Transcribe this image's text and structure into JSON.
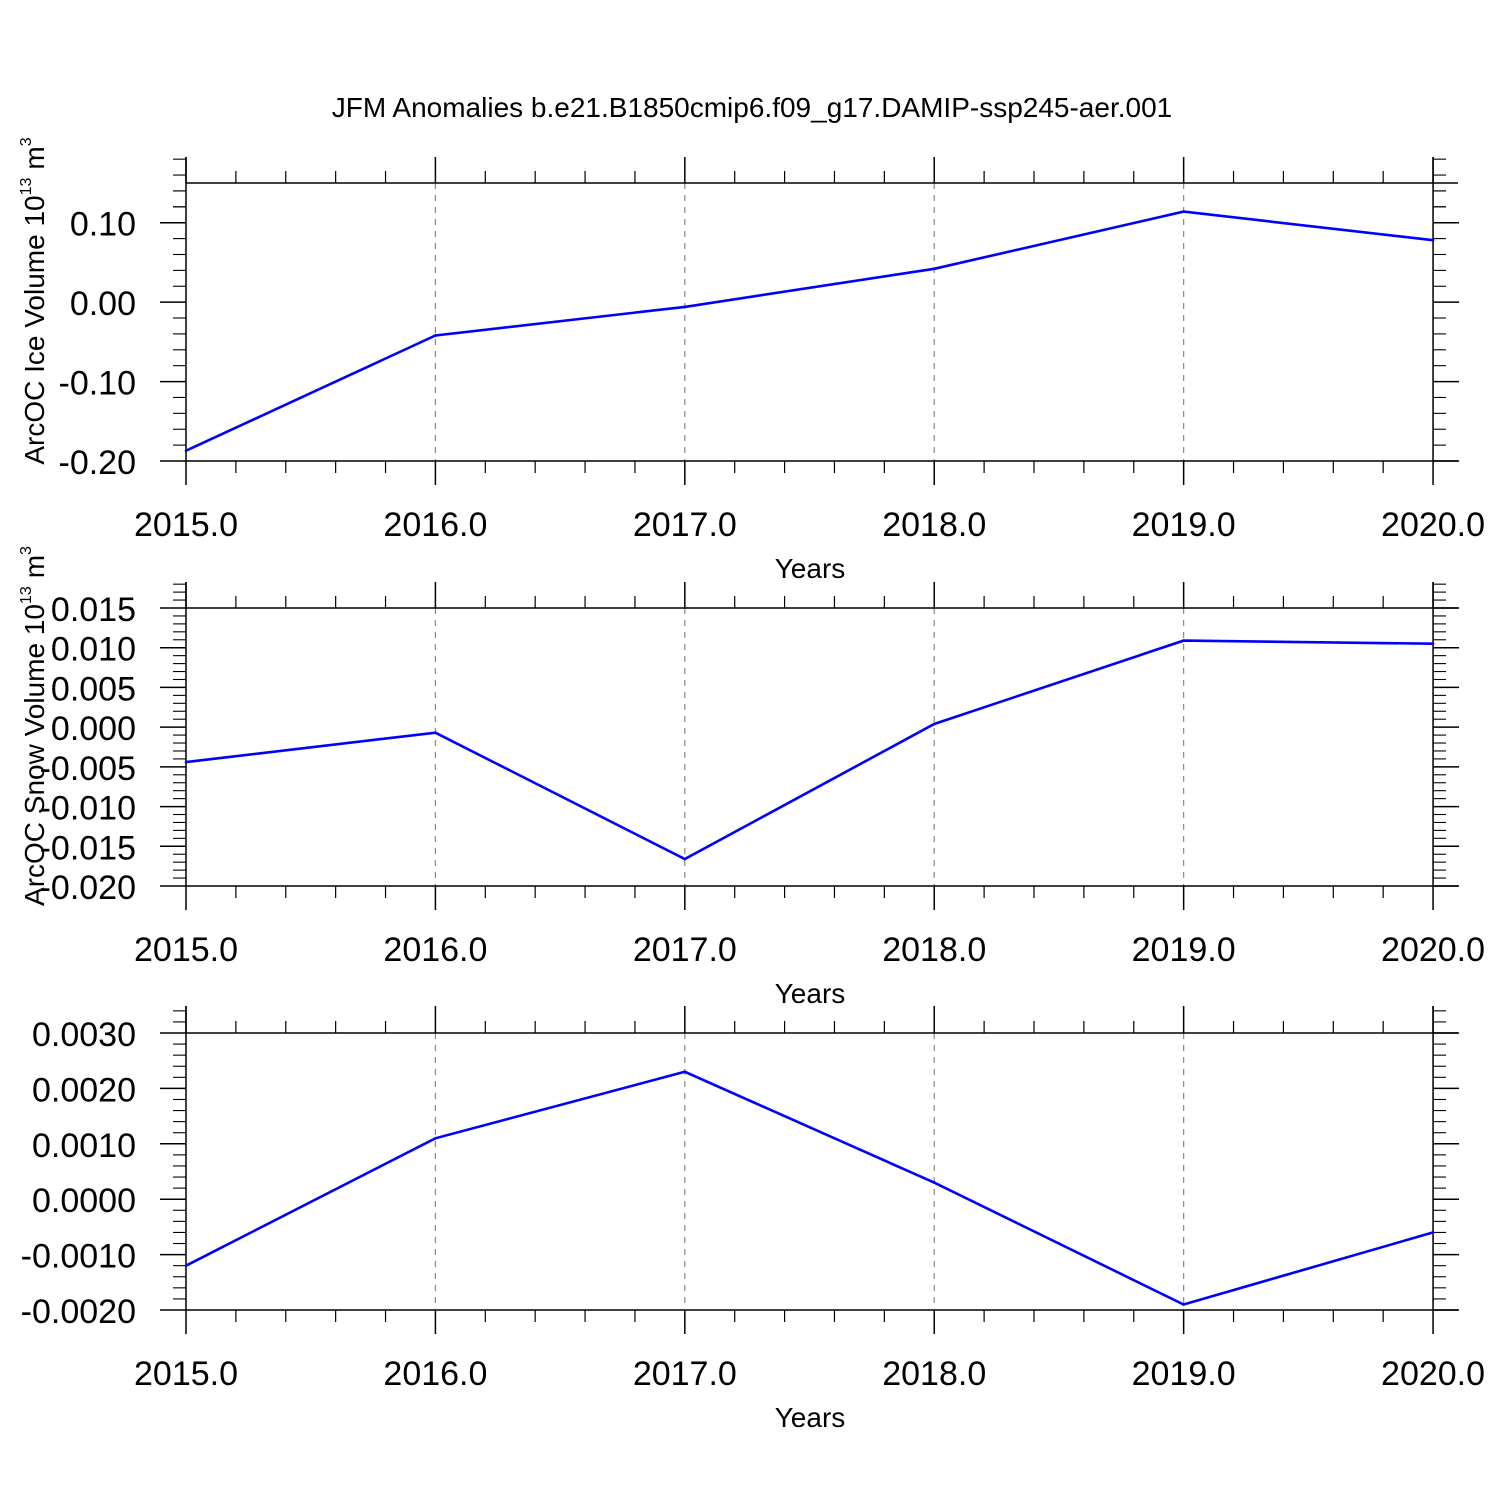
{
  "title": "JFM Anomalies b.e21.B1850cmip6.f09_g17.DAMIP-ssp245-aer.001",
  "colors": {
    "series": "#0000ff",
    "axis": "#000000",
    "gridline": "#888888",
    "background": "#ffffff"
  },
  "chart_data": [
    {
      "type": "line",
      "title": "",
      "xlabel": "Years",
      "ylabel": "ArcOC Ice Volume 10",
      "ylabel_superscript": "13",
      "ylabel_unit": "m",
      "ylabel_unit_superscript": "3",
      "xlim": [
        2015,
        2020.1
      ],
      "ylim": [
        -0.2,
        0.15
      ],
      "x_ticks": [
        2015.0,
        2016.0,
        2017.0,
        2018.0,
        2019.0,
        2020.0
      ],
      "x_tick_labels": [
        "2015.0",
        "2016.0",
        "2017.0",
        "2018.0",
        "2019.0",
        "2020.0"
      ],
      "y_ticks": [
        -0.2,
        -0.1,
        0.0,
        0.1
      ],
      "y_tick_labels": [
        "-0.20",
        "-0.10",
        "0.00",
        "0.10"
      ],
      "grid": "vertical dashed lines at major x ticks",
      "legend": "none",
      "series": [
        {
          "x": [
            2015,
            2016,
            2017,
            2018,
            2019,
            2020
          ],
          "values": [
            -0.187,
            -0.042,
            -0.006,
            0.042,
            0.114,
            0.078
          ]
        }
      ]
    },
    {
      "type": "line",
      "title": "",
      "xlabel": "Years",
      "ylabel": "ArcOC Snow Volume 10",
      "ylabel_superscript": "13",
      "ylabel_unit": "m",
      "ylabel_unit_superscript": "3",
      "xlim": [
        2015,
        2020.1
      ],
      "ylim": [
        -0.02,
        0.015
      ],
      "x_ticks": [
        2015.0,
        2016.0,
        2017.0,
        2018.0,
        2019.0,
        2020.0
      ],
      "x_tick_labels": [
        "2015.0",
        "2016.0",
        "2017.0",
        "2018.0",
        "2019.0",
        "2020.0"
      ],
      "y_ticks": [
        -0.02,
        -0.015,
        -0.01,
        -0.005,
        0.0,
        0.005,
        0.01,
        0.015
      ],
      "y_tick_labels": [
        "-0.020",
        "-0.015",
        "-0.010",
        "-0.005",
        "0.000",
        "0.005",
        "0.010",
        "0.015"
      ],
      "grid": "vertical dashed lines at major x ticks",
      "legend": "none",
      "series": [
        {
          "x": [
            2015,
            2016,
            2017,
            2018,
            2019,
            2020
          ],
          "values": [
            -0.0044,
            -0.0007,
            -0.0166,
            0.0004,
            0.0109,
            0.0105
          ]
        }
      ]
    },
    {
      "type": "line",
      "title": "",
      "xlabel": "Years",
      "ylabel": "",
      "xlim": [
        2015,
        2020.1
      ],
      "ylim": [
        -0.002,
        0.003
      ],
      "x_ticks": [
        2015.0,
        2016.0,
        2017.0,
        2018.0,
        2019.0,
        2020.0
      ],
      "x_tick_labels": [
        "2015.0",
        "2016.0",
        "2017.0",
        "2018.0",
        "2019.0",
        "2020.0"
      ],
      "y_ticks": [
        -0.002,
        -0.001,
        0.0,
        0.001,
        0.002,
        0.003
      ],
      "y_tick_labels": [
        "-0.0020",
        "-0.0010",
        "0.0000",
        "0.0010",
        "0.0020",
        "0.0030"
      ],
      "grid": "vertical dashed lines at major x ticks",
      "legend": "none",
      "series": [
        {
          "x": [
            2015,
            2016,
            2017,
            2018,
            2019,
            2020
          ],
          "values": [
            -0.0012,
            0.0011,
            0.0023,
            0.0003,
            -0.0019,
            -0.0006
          ]
        }
      ]
    }
  ]
}
